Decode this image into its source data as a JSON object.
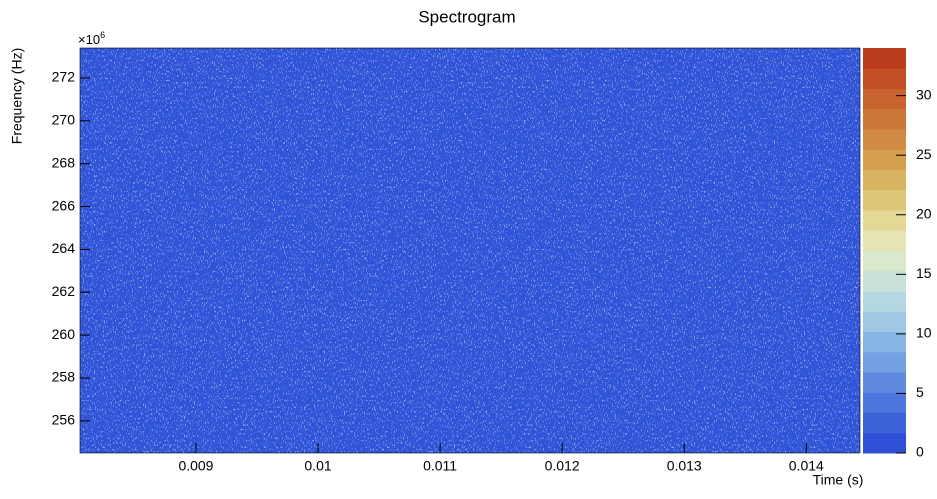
{
  "chart_data": {
    "type": "heatmap",
    "title": "Spectrogram",
    "x_label": "Time (s)",
    "y_label": "Frequency (Hz)",
    "y_multiplier": "×10",
    "y_multiplier_exp": "6",
    "xlim": [
      0.00805,
      0.01444
    ],
    "xticks": [
      0.009,
      0.01,
      0.011,
      0.012,
      0.013,
      0.014
    ],
    "ylim": [
      254500000,
      273400000
    ],
    "yticks": [
      {
        "value": 256000000,
        "label": "256"
      },
      {
        "value": 258000000,
        "label": "258"
      },
      {
        "value": 260000000,
        "label": "260"
      },
      {
        "value": 262000000,
        "label": "262"
      },
      {
        "value": 264000000,
        "label": "264"
      },
      {
        "value": 266000000,
        "label": "266"
      },
      {
        "value": 268000000,
        "label": "268"
      },
      {
        "value": 270000000,
        "label": "270"
      },
      {
        "value": 272000000,
        "label": "272"
      }
    ],
    "field_color": "#2f54d7",
    "zlim": [
      0,
      34
    ],
    "zticks": [
      0,
      5,
      10,
      15,
      20,
      25,
      30
    ],
    "palette": [
      "#2f4fd6",
      "#3c63da",
      "#4c77de",
      "#5f8ae0",
      "#73a0e2",
      "#88b5e4",
      "#9ec8e4",
      "#b4d8e2",
      "#c8e2da",
      "#dae8cc",
      "#e4e4b4",
      "#e4d896",
      "#dcc878",
      "#d8b460",
      "#d4a050",
      "#d08a42",
      "#cc7638",
      "#c8622e",
      "#c24e26",
      "#bc3c1e"
    ]
  }
}
